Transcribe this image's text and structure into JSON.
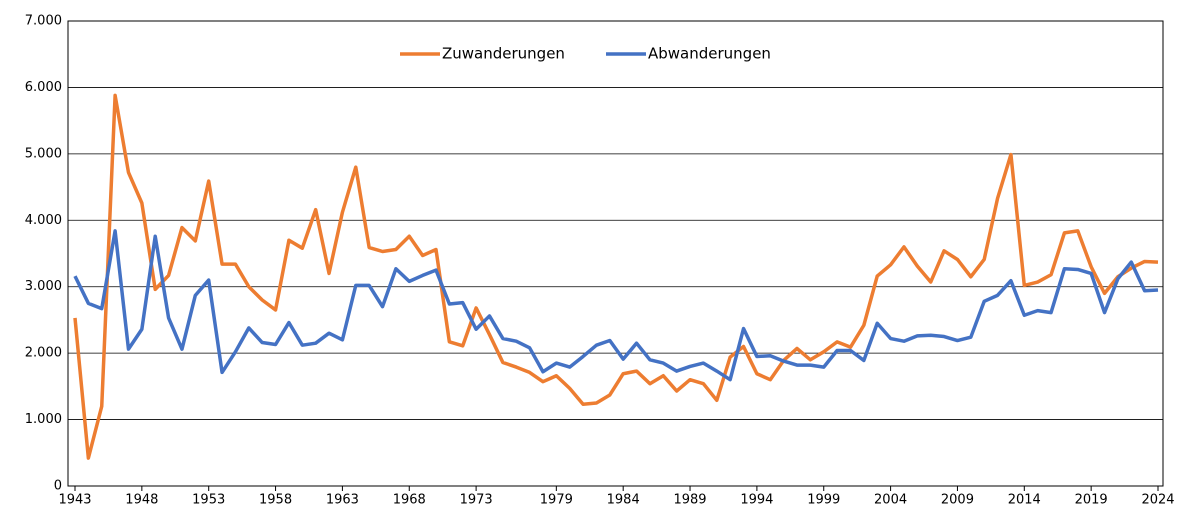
{
  "chart_data": {
    "type": "line",
    "x": [
      1943,
      1944,
      1945,
      1946,
      1947,
      1948,
      1949,
      1950,
      1951,
      1952,
      1953,
      1954,
      1955,
      1956,
      1957,
      1958,
      1959,
      1960,
      1961,
      1962,
      1963,
      1964,
      1965,
      1966,
      1967,
      1968,
      1969,
      1970,
      1971,
      1972,
      1973,
      1974,
      1975,
      1976,
      1977,
      1978,
      1979,
      1980,
      1981,
      1982,
      1983,
      1984,
      1985,
      1986,
      1987,
      1988,
      1989,
      1990,
      1991,
      1992,
      1993,
      1994,
      1995,
      1996,
      1997,
      1998,
      1999,
      2000,
      2001,
      2002,
      2003,
      2004,
      2005,
      2006,
      2007,
      2008,
      2009,
      2010,
      2011,
      2012,
      2013,
      2014,
      2015,
      2016,
      2017,
      2018,
      2019,
      2020,
      2021,
      2022,
      2023,
      2024
    ],
    "series": [
      {
        "name": "Zuwanderungen",
        "color": "#ed7d31",
        "values": [
          2530,
          420,
          1200,
          5880,
          4720,
          4260,
          2960,
          3170,
          3890,
          3690,
          4590,
          3340,
          3340,
          3000,
          2800,
          2650,
          3700,
          3580,
          4160,
          3200,
          4120,
          4800,
          3590,
          3530,
          3560,
          3760,
          3470,
          3560,
          2170,
          2110,
          2680,
          2280,
          1860,
          1790,
          1710,
          1570,
          1660,
          1470,
          1230,
          1250,
          1370,
          1690,
          1730,
          1540,
          1660,
          1430,
          1600,
          1540,
          1290,
          1940,
          2100,
          1690,
          1600,
          1890,
          2070,
          1900,
          2020,
          2170,
          2090,
          2420,
          3160,
          3330,
          3600,
          3310,
          3070,
          3540,
          3410,
          3150,
          3410,
          4330,
          4990,
          3020,
          3070,
          3180,
          3810,
          3840,
          3300,
          2900,
          3150,
          3280,
          3380,
          3370
        ]
      },
      {
        "name": "Abwanderungen",
        "color": "#4472c4",
        "values": [
          3160,
          2750,
          2670,
          3840,
          2060,
          2360,
          3760,
          2530,
          2060,
          2870,
          3100,
          1710,
          2020,
          2380,
          2160,
          2130,
          2460,
          2120,
          2150,
          2300,
          2200,
          3020,
          3020,
          2700,
          3270,
          3080,
          3170,
          3250,
          2740,
          2760,
          2360,
          2560,
          2220,
          2180,
          2080,
          1720,
          1850,
          1790,
          1950,
          2120,
          2190,
          1910,
          2150,
          1900,
          1850,
          1730,
          1800,
          1850,
          1730,
          1600,
          2370,
          1950,
          1960,
          1880,
          1820,
          1820,
          1790,
          2040,
          2040,
          1890,
          2450,
          2220,
          2180,
          2260,
          2270,
          2250,
          2190,
          2240,
          2780,
          2870,
          3090,
          2570,
          2640,
          2610,
          3270,
          3260,
          3200,
          2610,
          3120,
          3370,
          2940,
          2950
        ]
      }
    ],
    "xlim": [
      1943,
      2024
    ],
    "xticks": [
      1943,
      1948,
      1953,
      1958,
      1963,
      1968,
      1973,
      1979,
      1984,
      1989,
      1994,
      1999,
      2004,
      2009,
      2014,
      2019,
      2024
    ],
    "ylim": [
      0,
      7000
    ],
    "yticks": [
      0,
      {
        "value": 1000,
        "label": "1.000"
      },
      {
        "value": 2000,
        "label": "2.000"
      },
      {
        "value": 3000,
        "label": "3.000"
      },
      {
        "value": 4000,
        "label": "4.000"
      },
      {
        "value": 5000,
        "label": "5.000"
      },
      {
        "value": 6000,
        "label": "6.000"
      },
      {
        "value": 7000,
        "label": "7.000"
      }
    ],
    "grid": true,
    "legend": "top"
  }
}
